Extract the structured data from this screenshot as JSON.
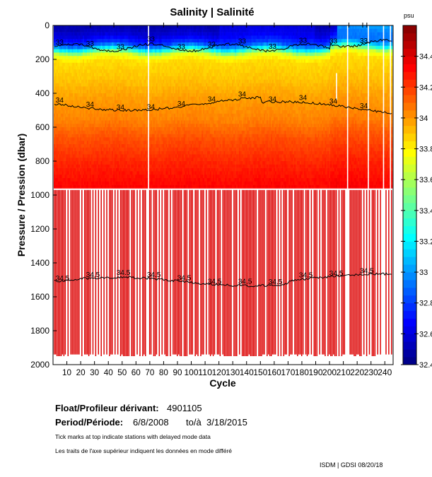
{
  "chart_data": {
    "type": "heatmap",
    "title": "Salinity | Salinité",
    "xlabel": "Cycle",
    "ylabel": "Pressure / Pression (dbar)",
    "colorbar_unit": "psu",
    "xlim": [
      0,
      246
    ],
    "ylim": [
      2000,
      0
    ],
    "y_reversed": true,
    "x_ticks": [
      "10",
      "20",
      "30",
      "40",
      "50",
      "60",
      "70",
      "80",
      "90",
      "100",
      "110",
      "120",
      "130",
      "140",
      "150",
      "160",
      "170",
      "180",
      "190",
      "200",
      "210",
      "220",
      "230",
      "240"
    ],
    "y_ticks": [
      "0",
      "200",
      "400",
      "600",
      "800",
      "1000",
      "1200",
      "1400",
      "1600",
      "1800",
      "2000"
    ],
    "color_range": [
      32.4,
      34.6
    ],
    "colorbar_ticks": [
      "32.4",
      "32.6",
      "32.8",
      "33",
      "33.2",
      "33.4",
      "33.6",
      "33.8",
      "34",
      "34.2",
      "34.4"
    ],
    "colormap": "jet",
    "representative_profile": {
      "pressure": [
        0,
        50,
        100,
        130,
        160,
        200,
        300,
        400,
        450,
        550,
        650,
        800,
        1000,
        1500,
        2000
      ],
      "salinity": [
        32.5,
        32.6,
        32.8,
        33.2,
        33.7,
        33.85,
        33.9,
        33.97,
        34.0,
        34.05,
        34.15,
        34.25,
        34.35,
        34.5,
        34.55
      ]
    },
    "contours": [
      {
        "level": "33",
        "approx_pressure": 130
      },
      {
        "level": "34",
        "approx_pressure": 480
      },
      {
        "level": "34.5",
        "approx_pressure": 1510
      }
    ],
    "missing_cycles": [
      69,
      213,
      228,
      239,
      244
    ],
    "deep_profiles_from_pressure": 970
  },
  "footer": {
    "float_label": "Float/Profileur dérivant:",
    "float_id": "4901105",
    "period_label": "Period/Période:",
    "period_start": "6/8/2008",
    "period_to": "to/à",
    "period_end": "3/18/2015",
    "note_en": "Tick marks at top indicate stations with delayed mode data",
    "note_fr": "Les traits de l'axe supérieur indiquent les données en mode différé",
    "credit": "ISDM | GDSI 08/20/18"
  }
}
